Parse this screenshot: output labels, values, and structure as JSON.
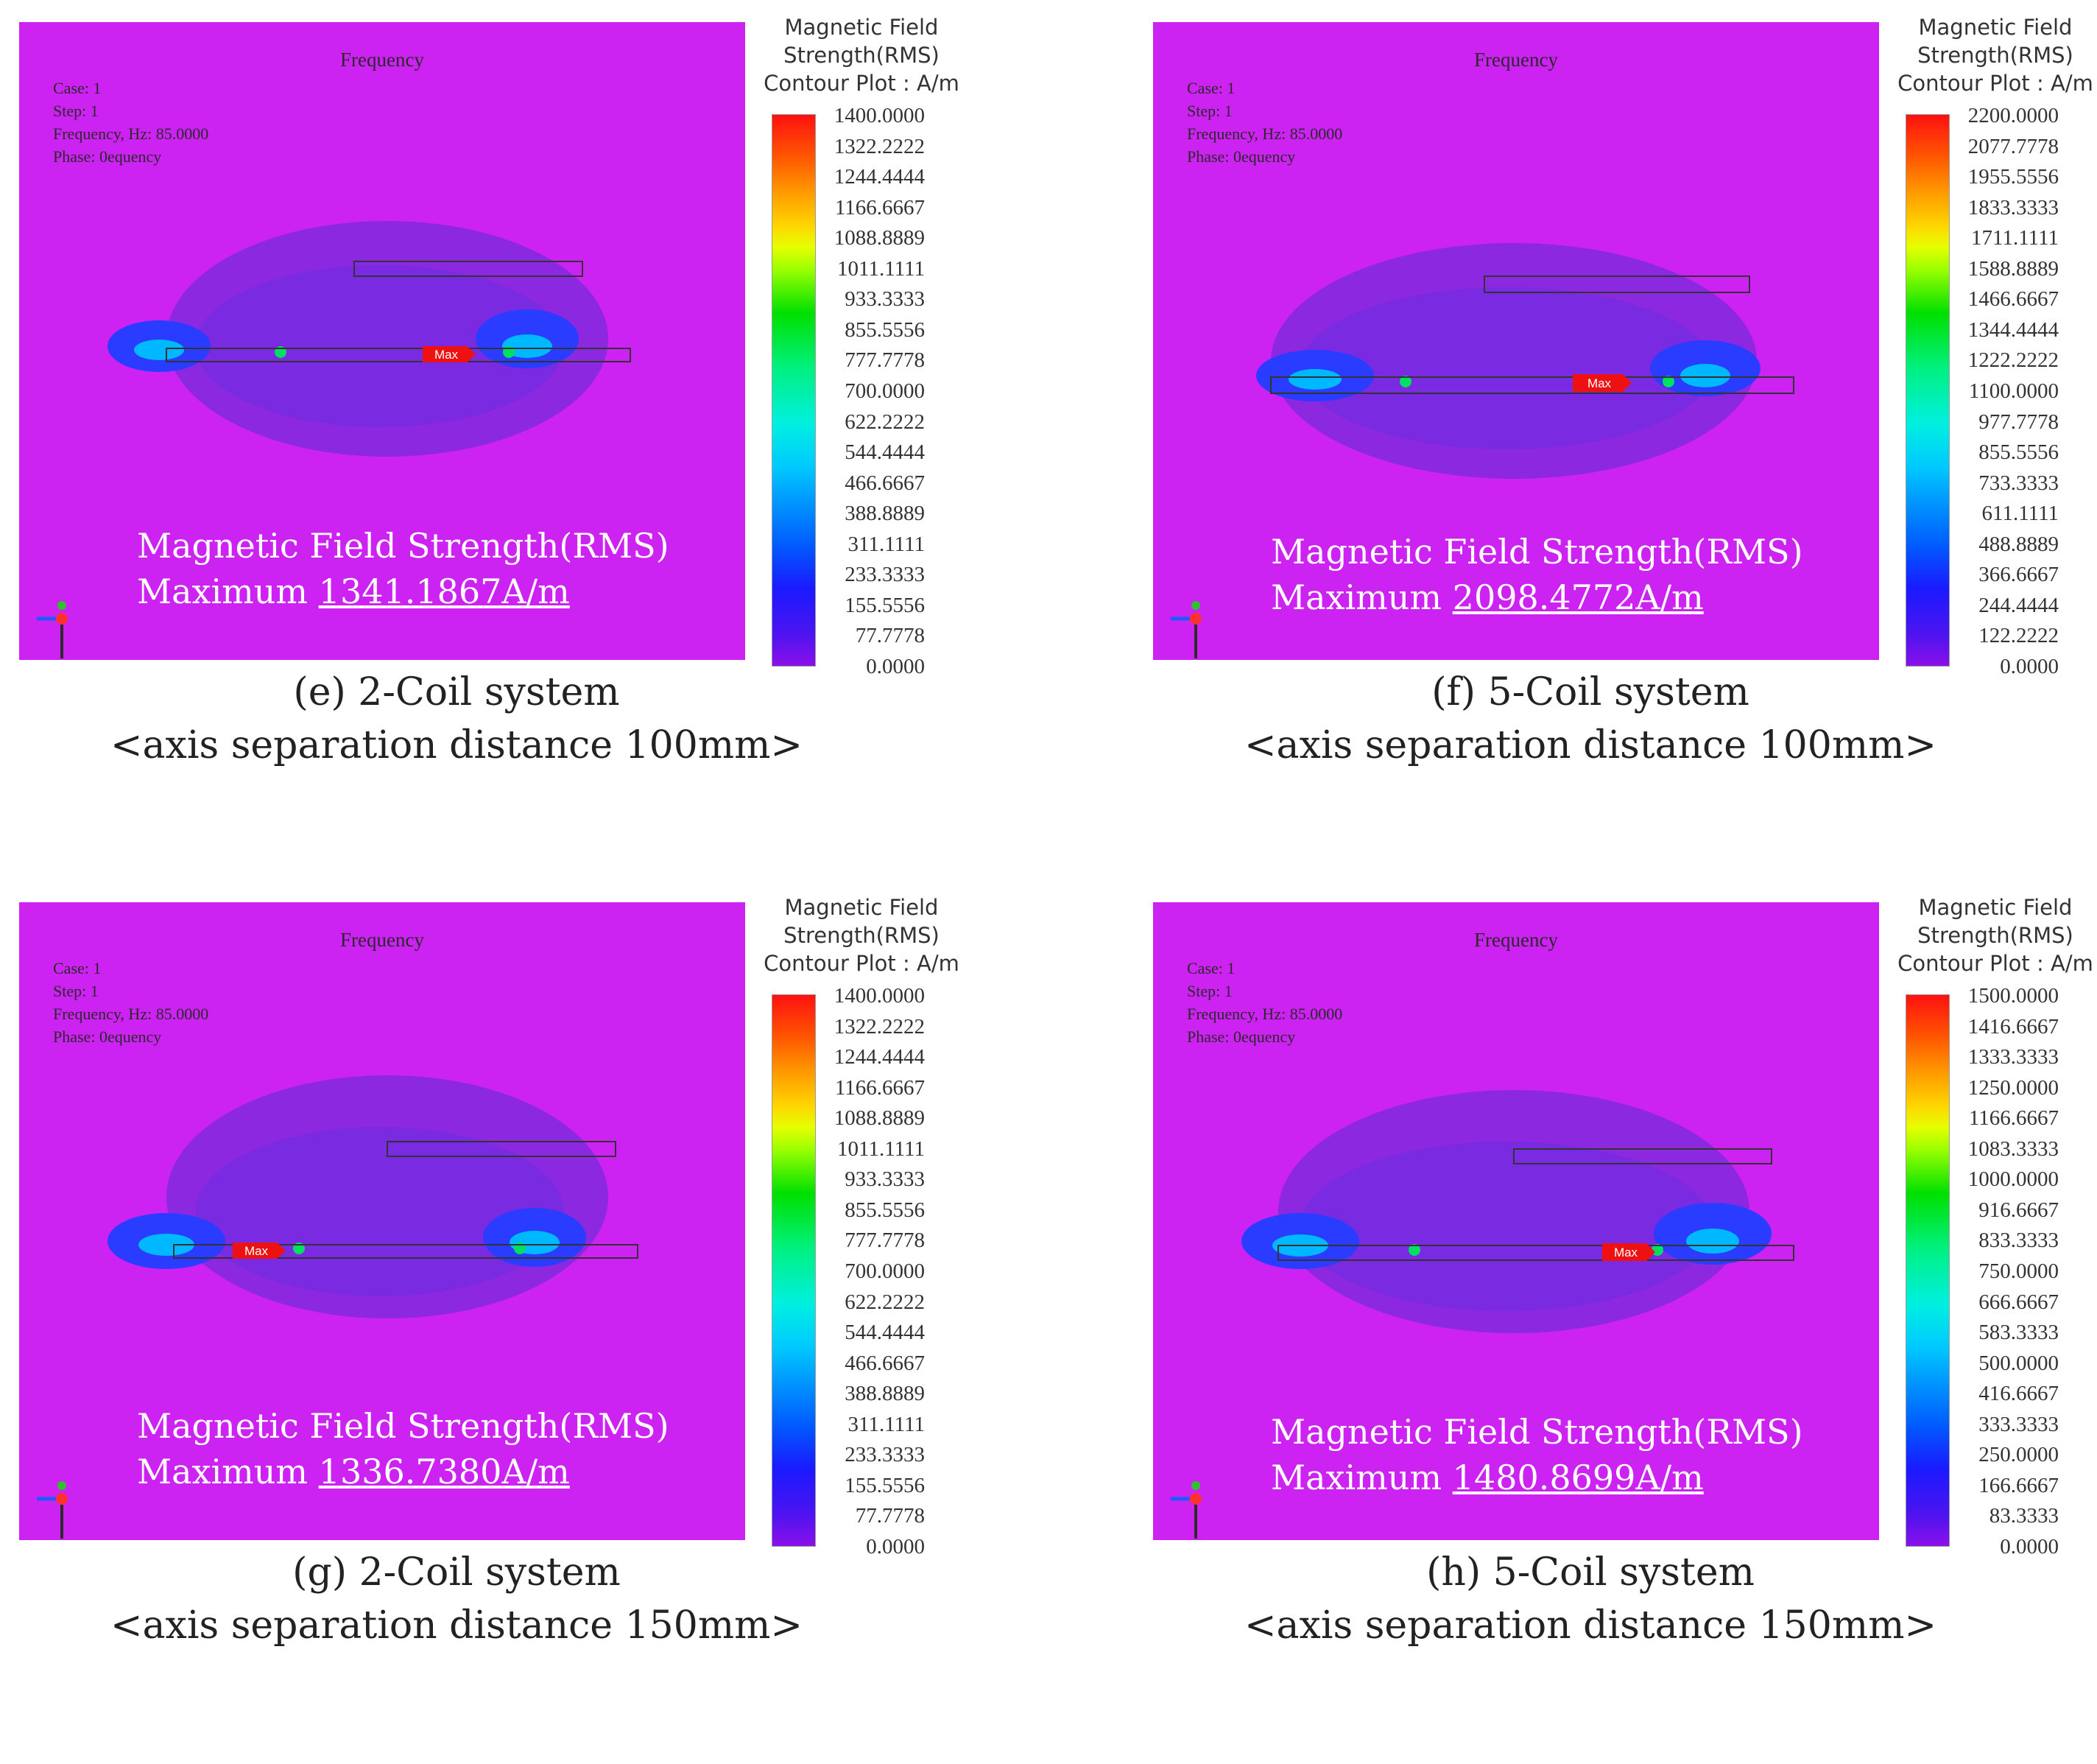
{
  "colors": {
    "background": "#cc22f2",
    "field_halo": "#8b28e0",
    "max_marker": "#ee1111",
    "overlay_text": "#ffffff"
  },
  "panels": [
    {
      "frequency_label": "Frequency",
      "info": [
        "Case: 1",
        "Step: 1",
        "Frequency, Hz: 85.0000",
        "Phase: 0equency"
      ],
      "legend_title": [
        "Magnetic Field",
        "Strength(RMS)",
        "Contour Plot : A/m"
      ],
      "legend_ticks": [
        "1400.0000",
        "1322.2222",
        "1244.4444",
        "1166.6667",
        "1088.8889",
        "1011.1111",
        "933.3333",
        "855.5556",
        "777.7778",
        "700.0000",
        "622.2222",
        "544.4444",
        "466.6667",
        "388.8889",
        "311.1111",
        "233.3333",
        "155.5556",
        "77.7778",
        "0.0000"
      ],
      "overlay_line1": "Magnetic Field Strength(RMS)",
      "overlay_prefix": "Maximum ",
      "overlay_value": "1341.1867A/m",
      "max_label": "Max",
      "caption_line1": "(e) 2-Coil system",
      "caption_line2": "<axis separation distance 100mm>"
    },
    {
      "frequency_label": "Frequency",
      "info": [
        "Case: 1",
        "Step: 1",
        "Frequency, Hz: 85.0000",
        "Phase: 0equency"
      ],
      "legend_title": [
        "Magnetic Field",
        "Strength(RMS)",
        "Contour Plot : A/m"
      ],
      "legend_ticks": [
        "2200.0000",
        "2077.7778",
        "1955.5556",
        "1833.3333",
        "1711.1111",
        "1588.8889",
        "1466.6667",
        "1344.4444",
        "1222.2222",
        "1100.0000",
        "977.7778",
        "855.5556",
        "733.3333",
        "611.1111",
        "488.8889",
        "366.6667",
        "244.4444",
        "122.2222",
        "0.0000"
      ],
      "overlay_line1": "Magnetic Field Strength(RMS)",
      "overlay_prefix": "Maximum ",
      "overlay_value": "2098.4772A/m",
      "max_label": "Max",
      "caption_line1": "(f) 5-Coil system",
      "caption_line2": "<axis separation distance 100mm>"
    },
    {
      "frequency_label": "Frequency",
      "info": [
        "Case: 1",
        "Step: 1",
        "Frequency, Hz: 85.0000",
        "Phase: 0equency"
      ],
      "legend_title": [
        "Magnetic Field",
        "Strength(RMS)",
        "Contour Plot : A/m"
      ],
      "legend_ticks": [
        "1400.0000",
        "1322.2222",
        "1244.4444",
        "1166.6667",
        "1088.8889",
        "1011.1111",
        "933.3333",
        "855.5556",
        "777.7778",
        "700.0000",
        "622.2222",
        "544.4444",
        "466.6667",
        "388.8889",
        "311.1111",
        "233.3333",
        "155.5556",
        "77.7778",
        "0.0000"
      ],
      "overlay_line1": "Magnetic Field Strength(RMS)",
      "overlay_prefix": "Maximum ",
      "overlay_value": "1336.7380A/m",
      "max_label": "Max",
      "caption_line1": "(g) 2-Coil system",
      "caption_line2": "<axis separation distance 150mm>"
    },
    {
      "frequency_label": "Frequency",
      "info": [
        "Case: 1",
        "Step: 1",
        "Frequency, Hz: 85.0000",
        "Phase: 0equency"
      ],
      "legend_title": [
        "Magnetic Field",
        "Strength(RMS)",
        "Contour Plot : A/m"
      ],
      "legend_ticks": [
        "1500.0000",
        "1416.6667",
        "1333.3333",
        "1250.0000",
        "1166.6667",
        "1083.3333",
        "1000.0000",
        "916.6667",
        "833.3333",
        "750.0000",
        "666.6667",
        "583.3333",
        "500.0000",
        "416.6667",
        "333.3333",
        "250.0000",
        "166.6667",
        "83.3333",
        "0.0000"
      ],
      "overlay_line1": "Magnetic Field Strength(RMS)",
      "overlay_prefix": "Maximum ",
      "overlay_value": "1480.8699A/m",
      "max_label": "Max",
      "caption_line1": "(h) 5-Coil system",
      "caption_line2": "<axis separation distance 150mm>"
    }
  ]
}
